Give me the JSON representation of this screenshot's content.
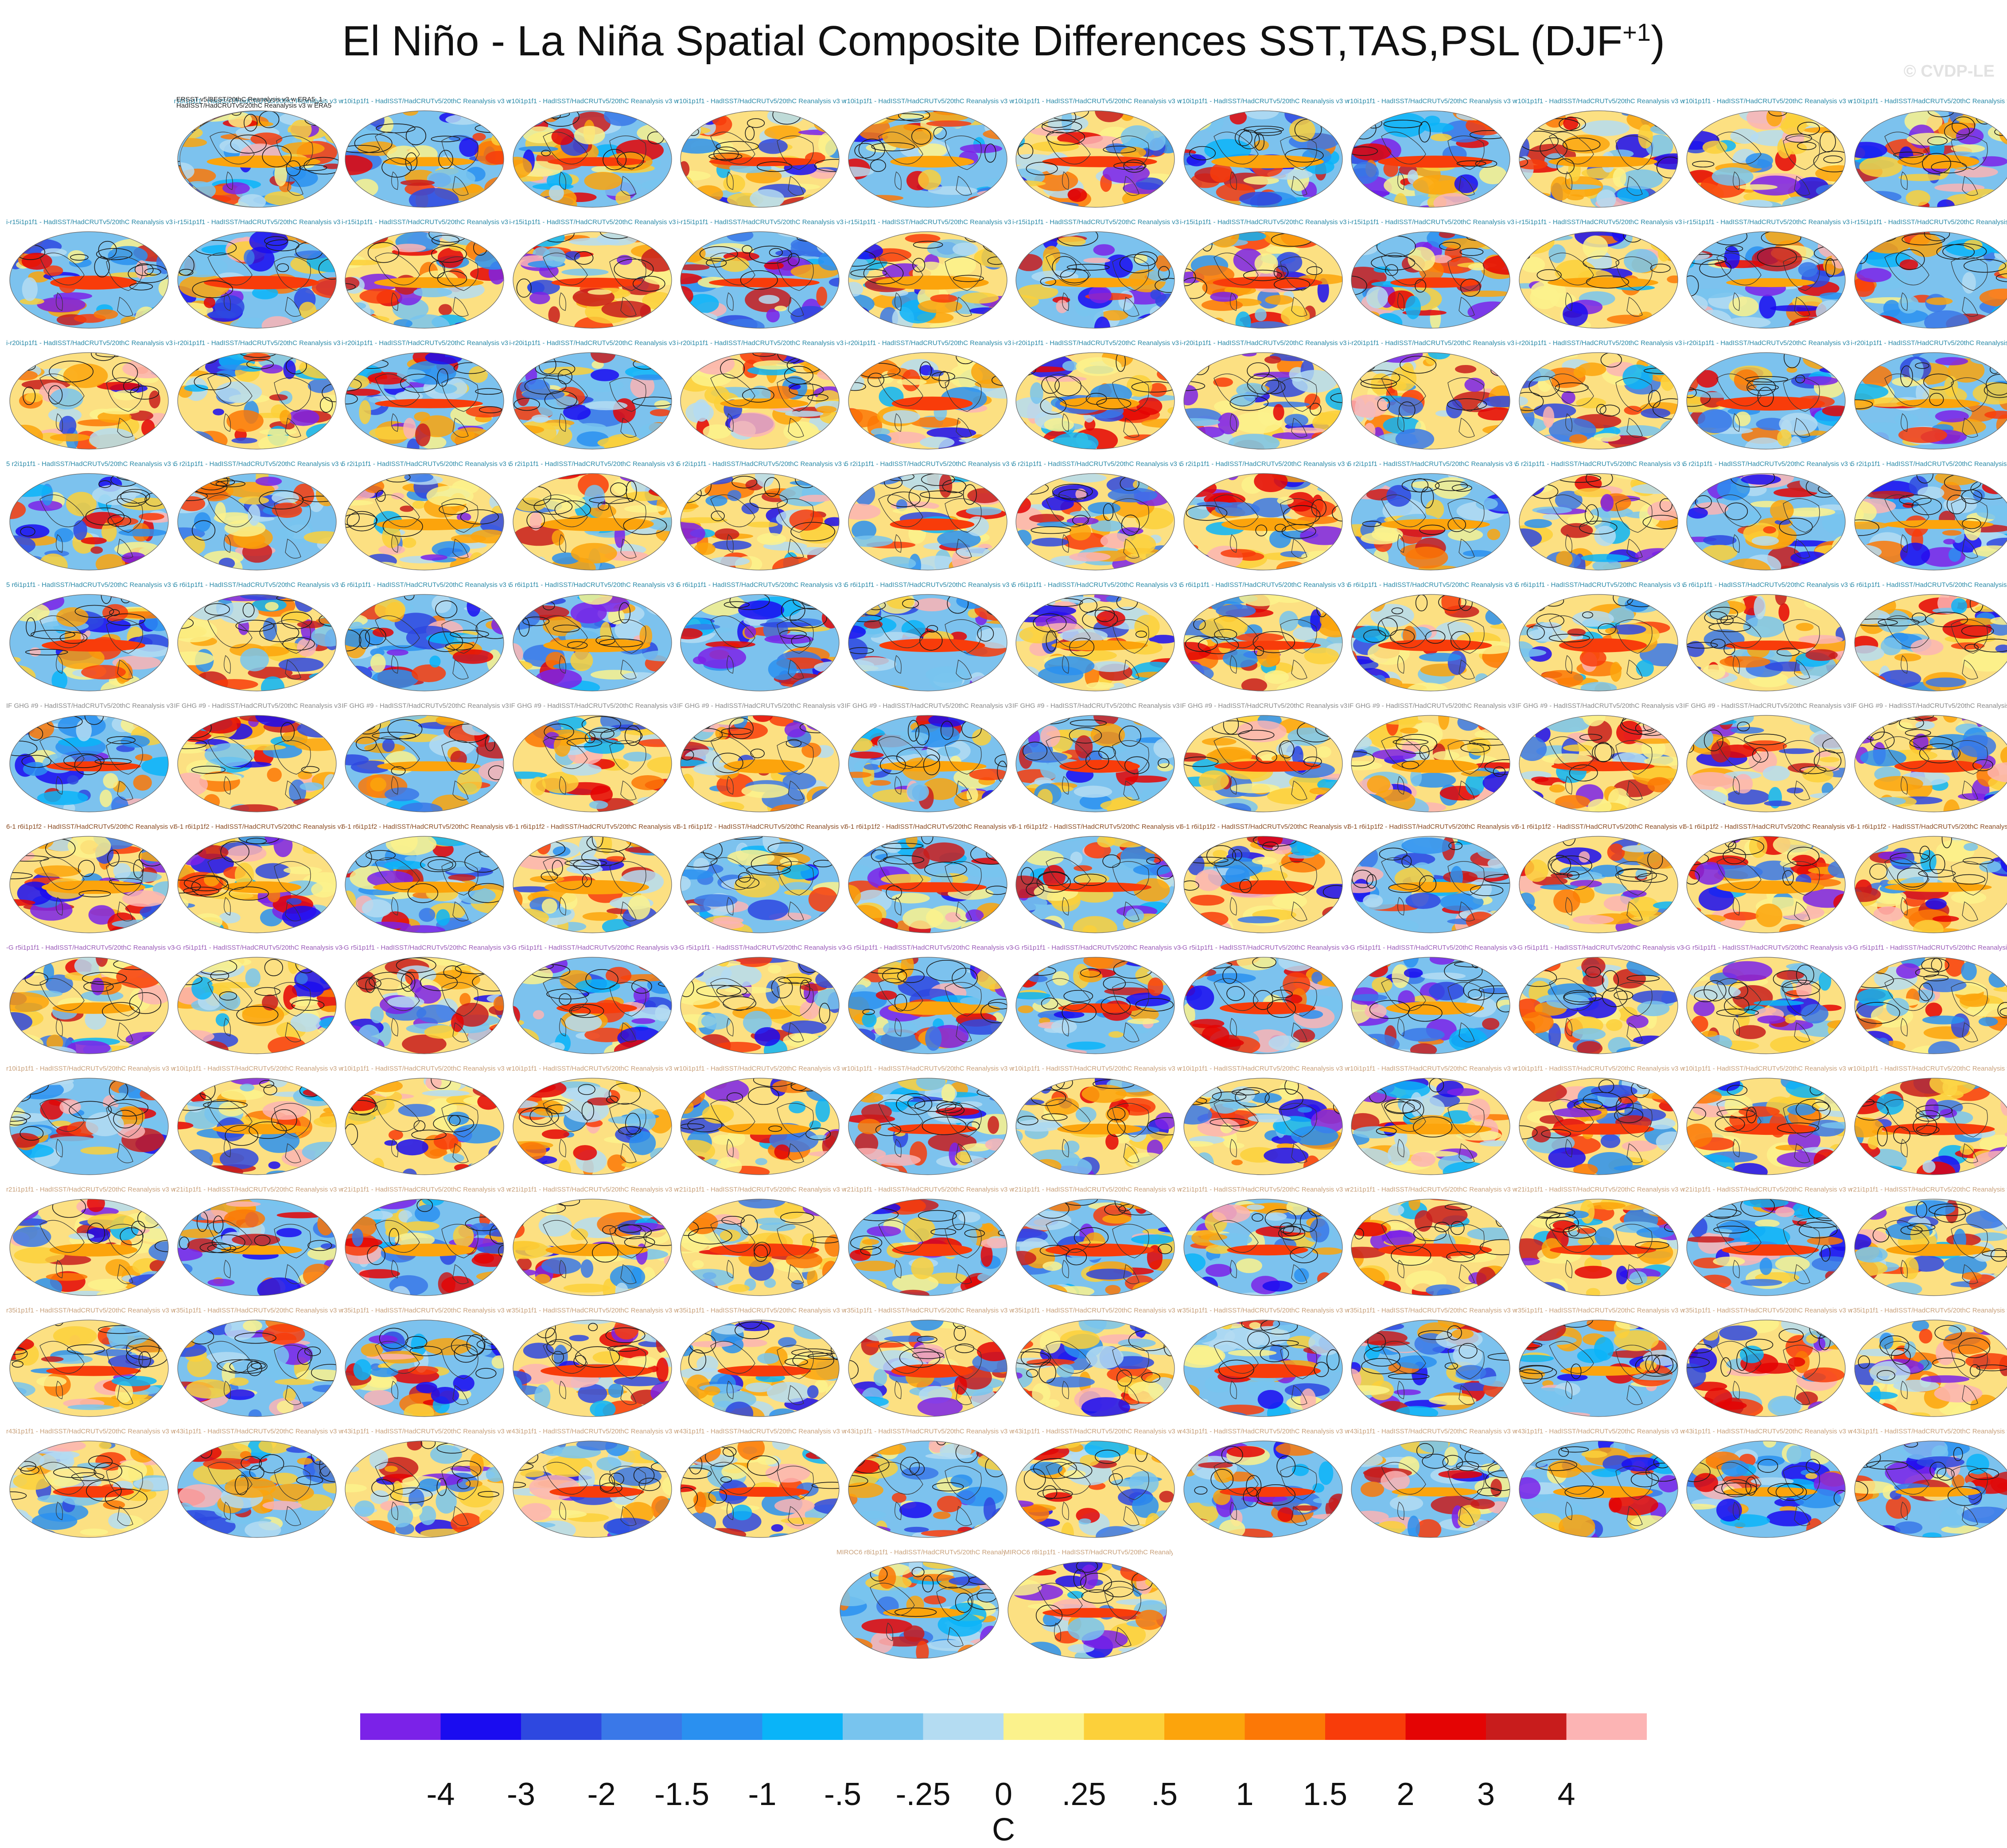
{
  "header": {
    "title_main": "El Niño - La Niña Spatial Composite Differences SST,TAS,PSL (DJF",
    "title_sup": "+1",
    "title_end": ")",
    "watermark": "© CVDP-LE"
  },
  "panels": {
    "obs_label_line1": "ERSST v5/BEST/20thC Reanalysis v3 w ERA5_1 -",
    "obs_label_line2": "HadISST/HadCRUTv5/20thC Reanalysis v3 w ERA5",
    "row_labels": [
      "r10i1p1f1 - HadISST/HadCRUTv5/20thC Reanalysis v3 w ERA5",
      "i-r15i1p1f1 - HadISST/HadCRUTv5/20thC Reanalysis v3 w ERA5",
      "i-r20i1p1f1 - HadISST/HadCRUTv5/20thC Reanalysis v3 w ERA5",
      "5 r2i1p1f1 - HadISST/HadCRUTv5/20thC Reanalysis v3 w ERA5",
      "5 r6i1p1f1 - HadISST/HadCRUTv5/20thC Reanalysis v3 w ERA5",
      "IF GHG #9 - HadISST/HadCRUTv5/20thC Reanalysis v3 w ERA5",
      "6-1 r6i1p1f2 - HadISST/HadCRUTv5/20thC Reanalysis v3 w ERA5",
      "-G r5i1p1f1 - HadISST/HadCRUTv5/20thC Reanalysis v3 w ERA5",
      "r10i1p1f1 - HadISST/HadCRUTv5/20thC Reanalysis v3 w ERA5",
      "r21i1p1f1 - HadISST/HadCRUTv5/20thC Reanalysis v3 w ERA5",
      "r35i1p1f1 - HadISST/HadCRUTv5/20thC Reanalysis v3 w ERA5",
      "r43i1p1f1 - HadISST/HadCRUTv5/20thC Reanalysis v3 w ERA5",
      "MIROC6 r8i1p1f1 - HadISST/HadCRUTv5/20thC Reanalysis v3 w ERA5"
    ],
    "label_colors": [
      "#2a8aa8",
      "#2a8aa8",
      "#2a8aa8",
      "#2a8aa8",
      "#2a8aa8",
      "#8a8a8a",
      "#8a4a20",
      "#9a5ab8",
      "#c8a07a",
      "#c8a07a",
      "#c8a07a",
      "#c8a07a",
      "#c8a07a"
    ],
    "rows": 12,
    "cols": 12,
    "last_row_count": 2
  },
  "colorbar": {
    "colors": [
      "#7b22e8",
      "#1a0cf0",
      "#2e48e0",
      "#3a78e8",
      "#2a90f0",
      "#0ab4f8",
      "#78c4ee",
      "#b4dcf2",
      "#fbf28c",
      "#fcd03a",
      "#fca40c",
      "#fc7806",
      "#f83c0a",
      "#e40404",
      "#c81c1c",
      "#fcb4b4"
    ],
    "ticks": [
      "-4",
      "-3",
      "-2",
      "-1.5",
      "-1",
      "-.5",
      "-.25",
      "0",
      ".25",
      ".5",
      "1",
      "1.5",
      "2",
      "3",
      "4"
    ],
    "units": "C"
  }
}
